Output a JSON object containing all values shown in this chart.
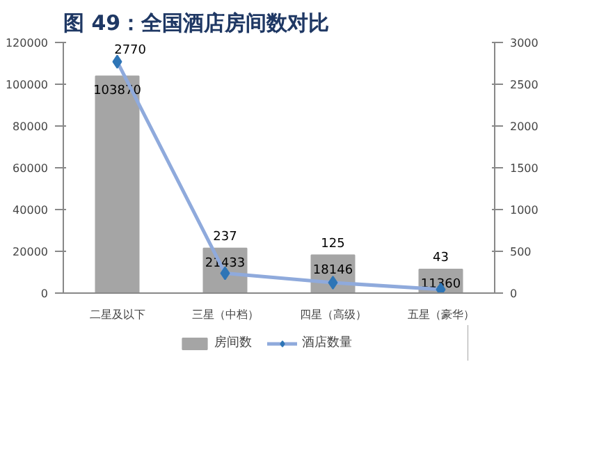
{
  "chart_data": {
    "type": "bar",
    "title": "图 49：全国酒店房间数对比",
    "categories": [
      "二星及以下",
      "三星（中档）",
      "四星（高级）",
      "五星（豪华）"
    ],
    "series": [
      {
        "name": "房间数",
        "color": "#a5a5a5",
        "values": [
          103870,
          21433,
          18146,
          11360
        ]
      },
      {
        "name": "酒店数量",
        "type": "line",
        "axis": "y2",
        "color": "#8faadc",
        "marker": "diamond",
        "values": [
          2770,
          237,
          125,
          43
        ]
      }
    ],
    "ylim": [
      0,
      120000
    ],
    "yticks": [
      0,
      20000,
      40000,
      60000,
      80000,
      100000,
      120000
    ],
    "y2lim": [
      0,
      3000
    ],
    "y2ticks": [
      0,
      500,
      1000,
      1500,
      2000,
      2500,
      3000
    ],
    "data_labels": true,
    "grid": false,
    "legend": "bottom"
  }
}
